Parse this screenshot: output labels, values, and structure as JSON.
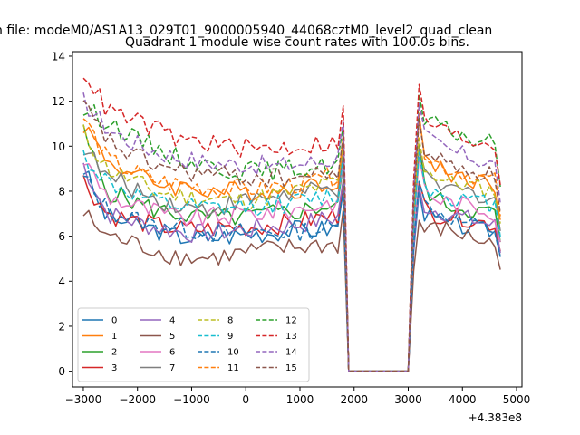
{
  "header": {
    "file_line": "n file: modeM0/AS1A13_029T01_9000005940_44068cztM0_level2_quad_clean",
    "title": "Quadrant 1 module wise count rates with 100.0s bins."
  },
  "chart_data": {
    "type": "line",
    "title": "Quadrant 1 module wise count rates with 100.0s bins.",
    "xlabel": "",
    "ylabel": "",
    "x_offset_label": "+4.383e8",
    "xlim": [
      -3200,
      5100
    ],
    "ylim": [
      -0.7,
      14.2
    ],
    "x_ticks": [
      -3000,
      -2000,
      -1000,
      0,
      1000,
      2000,
      3000,
      4000,
      5000
    ],
    "x_tick_labels": [
      "−3000",
      "−2000",
      "−1000",
      "0",
      "1000",
      "2000",
      "3000",
      "4000",
      "5000"
    ],
    "y_ticks": [
      0,
      2,
      4,
      6,
      8,
      10,
      12,
      14
    ],
    "y_tick_labels": [
      "0",
      "2",
      "4",
      "6",
      "8",
      "10",
      "12",
      "14"
    ],
    "grid": false,
    "legend_position": "bottom-left",
    "legend_columns": 4,
    "segments": {
      "seg1_x": [
        -3000,
        1800
      ],
      "gap_x": [
        1900,
        3000
      ],
      "seg2_x": [
        3100,
        4650
      ],
      "gap_value": 0
    },
    "series": [
      {
        "name": "0",
        "color": "#1f77b4",
        "dash": "solid",
        "seg1": [
          9.0,
          6.8,
          6.6,
          6.3,
          6.0,
          5.9,
          6.0,
          6.1,
          6.2,
          6.3,
          6.3,
          6.4
        ],
        "seg2": [
          7.4,
          6.8,
          6.5,
          6.4,
          6.3,
          6.2
        ]
      },
      {
        "name": "1",
        "color": "#ff7f0e",
        "dash": "solid",
        "seg1": [
          11.0,
          9.4,
          8.8,
          8.4,
          8.2,
          8.1,
          8.0,
          8.0,
          8.0,
          8.1,
          8.3,
          8.6
        ],
        "seg2": [
          10.5,
          9.3,
          8.8,
          8.6,
          8.4,
          8.2
        ]
      },
      {
        "name": "2",
        "color": "#2ca02c",
        "dash": "solid",
        "seg1": [
          10.6,
          8.0,
          7.6,
          7.2,
          7.0,
          6.8,
          6.8,
          6.9,
          7.0,
          7.1,
          7.3,
          7.5
        ],
        "seg2": [
          9.3,
          7.8,
          7.4,
          7.2,
          7.1,
          7.0
        ]
      },
      {
        "name": "3",
        "color": "#d62728",
        "dash": "solid",
        "seg1": [
          8.5,
          7.0,
          6.7,
          6.5,
          6.3,
          6.3,
          6.4,
          6.4,
          6.5,
          6.6,
          6.8,
          6.9
        ],
        "seg2": [
          7.8,
          7.0,
          6.9,
          6.8,
          6.6,
          6.5
        ]
      },
      {
        "name": "4",
        "color": "#9467bd",
        "dash": "solid",
        "seg1": [
          9.2,
          7.0,
          6.7,
          6.4,
          6.2,
          6.1,
          6.2,
          6.3,
          6.4,
          6.5,
          6.7,
          6.9
        ],
        "seg2": [
          7.6,
          7.2,
          7.0,
          6.8,
          6.6,
          6.4
        ]
      },
      {
        "name": "5",
        "color": "#8c564b",
        "dash": "solid",
        "seg1": [
          7.0,
          6.0,
          5.7,
          5.4,
          5.1,
          5.0,
          5.1,
          5.3,
          5.4,
          5.5,
          5.6,
          5.6
        ],
        "seg2": [
          6.2,
          6.3,
          6.3,
          6.0,
          5.8,
          5.5
        ]
      },
      {
        "name": "6",
        "color": "#e377c2",
        "dash": "solid",
        "seg1": [
          9.4,
          7.8,
          7.4,
          7.1,
          6.8,
          6.8,
          6.9,
          7.0,
          7.1,
          7.2,
          7.4,
          7.6
        ],
        "seg2": [
          8.8,
          7.8,
          7.5,
          7.4,
          7.2,
          7.0
        ]
      },
      {
        "name": "7",
        "color": "#7f7f7f",
        "dash": "solid",
        "seg1": [
          10.0,
          8.6,
          8.2,
          7.7,
          7.4,
          7.2,
          7.4,
          7.6,
          7.8,
          7.9,
          8.0,
          8.1
        ],
        "seg2": [
          9.2,
          8.3,
          8.1,
          8.0,
          7.8,
          7.6
        ]
      },
      {
        "name": "8",
        "color": "#bcbd22",
        "dash": "dashed",
        "seg1": [
          10.6,
          9.0,
          8.5,
          8.0,
          7.8,
          7.7,
          7.6,
          7.6,
          7.8,
          8.0,
          8.2,
          8.4
        ],
        "seg2": [
          9.6,
          8.8,
          8.4,
          8.3,
          8.1,
          8.0
        ]
      },
      {
        "name": "9",
        "color": "#17becf",
        "dash": "dashed",
        "seg1": [
          9.6,
          8.4,
          7.9,
          7.5,
          7.3,
          7.2,
          7.2,
          7.3,
          7.4,
          7.5,
          7.7,
          7.9
        ],
        "seg2": [
          9.0,
          8.0,
          7.8,
          7.6,
          7.5,
          7.3
        ]
      },
      {
        "name": "10",
        "color": "#1f77b4",
        "dash": "dashed",
        "seg1": [
          8.6,
          7.2,
          6.8,
          6.5,
          6.4,
          6.2,
          6.1,
          6.2,
          6.2,
          6.2,
          6.3,
          6.4
        ],
        "seg2": [
          7.8,
          7.2,
          6.9,
          6.6,
          6.4,
          6.2
        ]
      },
      {
        "name": "11",
        "color": "#ff7f0e",
        "dash": "dashed",
        "seg1": [
          11.3,
          9.4,
          8.9,
          8.5,
          8.3,
          8.2,
          8.1,
          8.1,
          8.2,
          8.3,
          8.5,
          8.8
        ],
        "seg2": [
          10.6,
          9.4,
          9.0,
          8.8,
          8.6,
          8.4
        ]
      },
      {
        "name": "12",
        "color": "#2ca02c",
        "dash": "dashed",
        "seg1": [
          11.6,
          11.2,
          10.4,
          10.0,
          9.5,
          9.2,
          9.0,
          8.9,
          8.9,
          9.0,
          9.1,
          9.3
        ],
        "seg2": [
          11.4,
          11.0,
          10.7,
          10.4,
          10.2,
          10.0
        ]
      },
      {
        "name": "13",
        "color": "#d62728",
        "dash": "dashed",
        "seg1": [
          13.4,
          11.6,
          11.2,
          10.8,
          10.3,
          10.2,
          10.0,
          9.9,
          9.9,
          10.0,
          10.1,
          10.2
        ],
        "seg2": [
          11.8,
          11.0,
          10.6,
          10.3,
          10.2,
          10.1
        ]
      },
      {
        "name": "14",
        "color": "#9467bd",
        "dash": "dashed",
        "seg1": [
          12.0,
          10.8,
          10.2,
          9.8,
          9.5,
          9.3,
          9.2,
          9.2,
          9.1,
          9.2,
          9.3,
          9.5
        ],
        "seg2": [
          11.0,
          10.2,
          9.8,
          9.6,
          9.3,
          9.1
        ]
      },
      {
        "name": "15",
        "color": "#8c564b",
        "dash": "dashed",
        "seg1": [
          11.8,
          10.3,
          9.6,
          9.2,
          8.9,
          8.8,
          8.7,
          8.6,
          8.6,
          8.6,
          8.7,
          8.9
        ],
        "seg2": [
          10.4,
          9.6,
          9.2,
          9.0,
          8.8,
          8.6
        ]
      }
    ]
  }
}
